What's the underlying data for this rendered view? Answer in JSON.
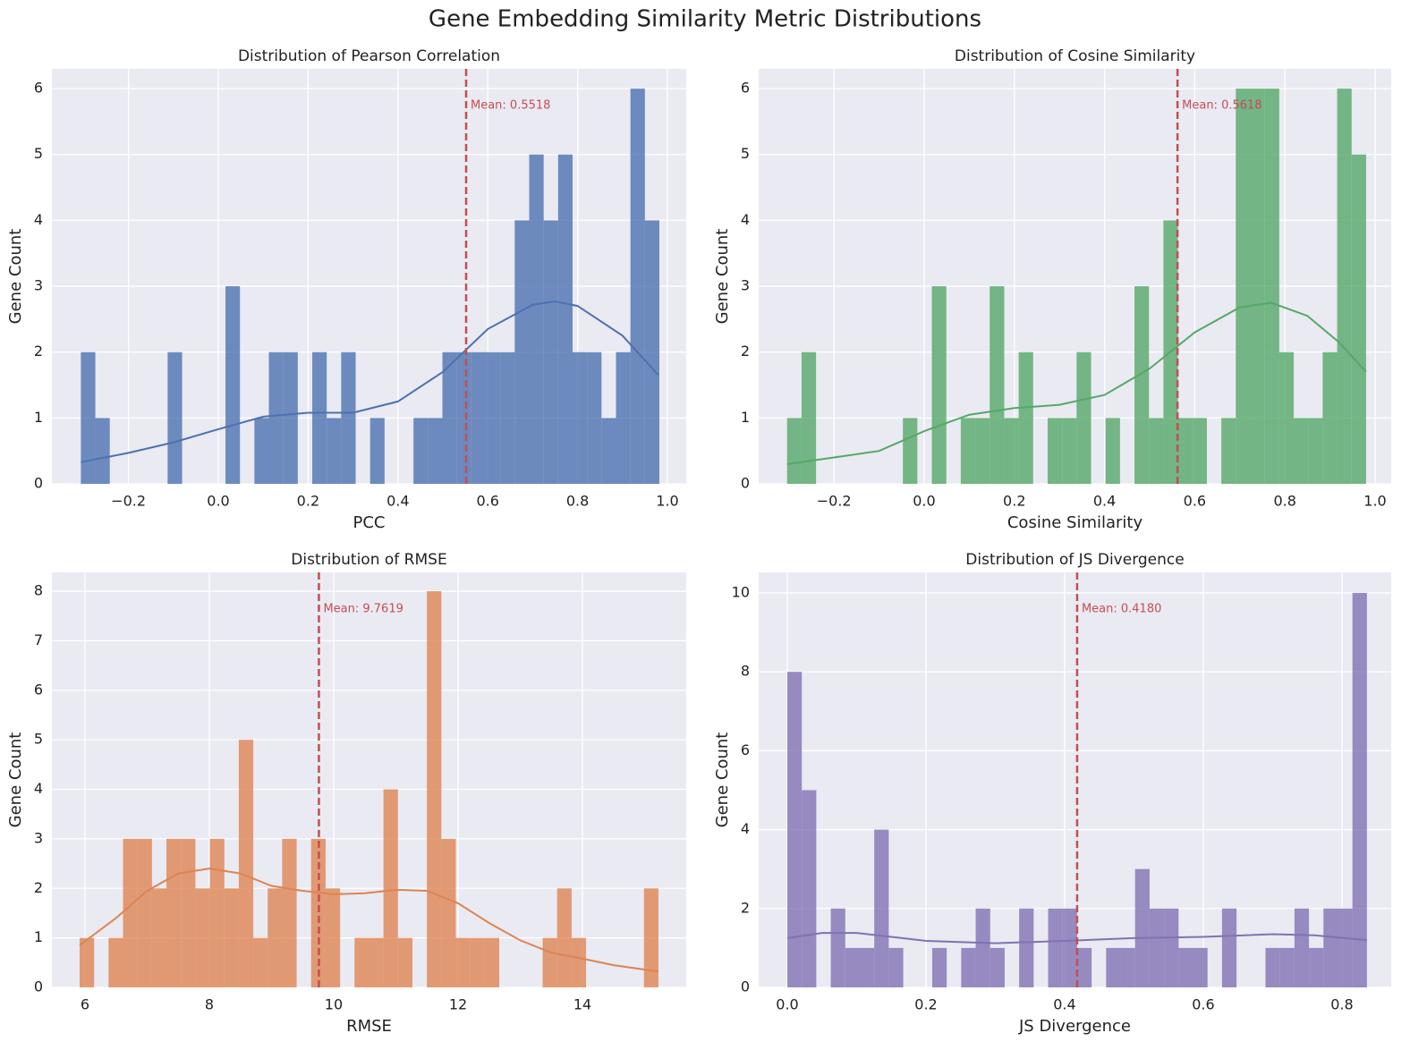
{
  "title": "Gene Embedding Similarity Metric Distributions",
  "chart_data": [
    {
      "type": "histogram",
      "title": "Distribution of Pearson Correlation",
      "xlabel": "PCC",
      "ylabel": "Gene Count",
      "color": "#4c72b0",
      "grid": true,
      "bins": [
        -0.306,
        -0.2738,
        -0.2416,
        -0.2094,
        -0.1772,
        -0.145,
        -0.1128,
        -0.0806,
        -0.0484,
        -0.0162,
        0.016,
        0.0482,
        0.0804,
        0.1126,
        0.1448,
        0.177,
        0.2092,
        0.2414,
        0.2736,
        0.3058,
        0.338,
        0.3702,
        0.4024,
        0.4346,
        0.4668,
        0.499,
        0.5312,
        0.5634,
        0.5956,
        0.6278,
        0.66,
        0.6922,
        0.7244,
        0.7566,
        0.7888,
        0.821,
        0.8532,
        0.8854,
        0.9176,
        0.9498,
        0.982
      ],
      "counts": [
        2,
        1,
        0,
        0,
        0,
        0,
        2,
        0,
        0,
        0,
        3,
        0,
        1,
        2,
        2,
        0,
        2,
        1,
        2,
        0,
        1,
        0,
        0,
        1,
        1,
        2,
        2,
        2,
        2,
        2,
        4,
        5,
        4,
        5,
        2,
        2,
        1,
        2,
        6,
        4
      ],
      "kde": {
        "x": [
          -0.306,
          -0.2,
          -0.1,
          0.0,
          0.1,
          0.2,
          0.3,
          0.4,
          0.5,
          0.6,
          0.7,
          0.75,
          0.8,
          0.9,
          0.98
        ],
        "y": [
          0.33,
          0.47,
          0.63,
          0.83,
          1.02,
          1.08,
          1.08,
          1.25,
          1.7,
          2.35,
          2.72,
          2.77,
          2.7,
          2.25,
          1.65
        ]
      },
      "mean": {
        "value": 0.5518,
        "label": "Mean: 0.5518",
        "color": "#c44e52"
      },
      "xlim": [
        -0.3705,
        1.0418
      ],
      "ylim": [
        0,
        6.3
      ],
      "xticks": [
        {
          "value": -0.2,
          "label": "−0.2"
        },
        {
          "value": 0,
          "label": "0.0"
        },
        0.2,
        0.4,
        0.6,
        0.8,
        {
          "value": 1,
          "label": "1.0"
        }
      ],
      "yticks": [
        0,
        1,
        2,
        3,
        4,
        5,
        6
      ]
    },
    {
      "type": "histogram",
      "title": "Distribution of Cosine Similarity",
      "xlabel": "Cosine Similarity",
      "ylabel": "Gene Count",
      "color": "#55a868",
      "grid": true,
      "bins": [
        -0.304,
        -0.2719,
        -0.2398,
        -0.2077,
        -0.1756,
        -0.1435,
        -0.1114,
        -0.0793,
        -0.0472,
        -0.0151,
        0.017,
        0.0491,
        0.0812,
        0.1133,
        0.1454,
        0.1775,
        0.2096,
        0.2417,
        0.2738,
        0.3059,
        0.338,
        0.3701,
        0.4022,
        0.4343,
        0.4664,
        0.4985,
        0.5306,
        0.5627,
        0.5948,
        0.6269,
        0.659,
        0.6911,
        0.7232,
        0.7553,
        0.7874,
        0.8195,
        0.8516,
        0.8837,
        0.9158,
        0.9479,
        0.98
      ],
      "counts": [
        1,
        2,
        0,
        0,
        0,
        0,
        0,
        0,
        1,
        0,
        3,
        0,
        1,
        1,
        3,
        1,
        2,
        0,
        1,
        1,
        2,
        0,
        1,
        0,
        3,
        1,
        4,
        1,
        1,
        0,
        1,
        6,
        6,
        6,
        2,
        1,
        1,
        2,
        6,
        5
      ],
      "kde": {
        "x": [
          -0.304,
          -0.2,
          -0.1,
          0.0,
          0.1,
          0.2,
          0.3,
          0.4,
          0.5,
          0.6,
          0.7,
          0.77,
          0.85,
          0.92,
          0.98
        ],
        "y": [
          0.3,
          0.4,
          0.5,
          0.8,
          1.05,
          1.15,
          1.2,
          1.35,
          1.75,
          2.3,
          2.68,
          2.75,
          2.55,
          2.15,
          1.7
        ]
      },
      "mean": {
        "value": 0.5618,
        "label": "Mean: 0.5618",
        "color": "#c44e52"
      },
      "xlim": [
        -0.367,
        1.0357
      ],
      "ylim": [
        0,
        6.3
      ],
      "xticks": [
        {
          "value": -0.2,
          "label": "−0.2"
        },
        {
          "value": 0,
          "label": "0.0"
        },
        0.2,
        0.4,
        0.6,
        0.8,
        {
          "value": 1,
          "label": "1.0"
        }
      ],
      "yticks": [
        0,
        1,
        2,
        3,
        4,
        5,
        6
      ]
    },
    {
      "type": "histogram",
      "title": "Distribution of RMSE",
      "xlabel": "RMSE",
      "ylabel": "Gene Count",
      "color": "#dd8452",
      "grid": true,
      "bins": [
        5.914,
        6.1467,
        6.3794,
        6.6121,
        6.8448,
        7.0775,
        7.3102,
        7.5429,
        7.7756,
        8.0083,
        8.241,
        8.4737,
        8.7064,
        8.9391,
        9.1718,
        9.4045,
        9.6372,
        9.8699,
        10.1026,
        10.3353,
        10.568,
        10.8007,
        11.0334,
        11.2661,
        11.4988,
        11.7315,
        11.9642,
        12.1969,
        12.4296,
        12.6623,
        12.895,
        13.1277,
        13.3604,
        13.5931,
        13.8258,
        14.0585,
        14.2912,
        14.5239,
        14.7566,
        14.9893,
        15.222
      ],
      "counts": [
        1,
        0,
        1,
        3,
        3,
        2,
        3,
        3,
        2,
        3,
        2,
        5,
        1,
        2,
        3,
        0,
        3,
        2,
        0,
        1,
        1,
        4,
        1,
        0,
        8,
        3,
        1,
        1,
        1,
        0,
        0,
        0,
        1,
        2,
        1,
        0,
        0,
        0,
        0,
        2
      ],
      "kde": {
        "x": [
          5.914,
          6.5,
          7,
          7.5,
          8,
          8.5,
          9,
          9.5,
          10,
          10.5,
          11,
          11.5,
          12,
          12.5,
          13,
          13.5,
          14,
          14.5,
          15.222
        ],
        "y": [
          0.85,
          1.4,
          1.95,
          2.3,
          2.4,
          2.3,
          2.05,
          1.95,
          1.88,
          1.9,
          1.97,
          1.95,
          1.7,
          1.3,
          0.95,
          0.7,
          0.58,
          0.45,
          0.32
        ]
      },
      "mean": {
        "value": 9.7619,
        "label": "Mean: 9.7619",
        "color": "#c44e52"
      },
      "xlim": [
        5.468,
        15.669
      ],
      "ylim": [
        0,
        8.38
      ],
      "xticks": [
        6,
        8,
        10,
        12,
        14
      ],
      "yticks": [
        0,
        1,
        2,
        3,
        4,
        5,
        6,
        7,
        8
      ]
    },
    {
      "type": "histogram",
      "title": "Distribution of JS Divergence",
      "xlabel": "JS Divergence",
      "ylabel": "Gene Count",
      "color": "#8172b3",
      "grid": true,
      "bins": [
        0,
        0.0209,
        0.0418,
        0.0627,
        0.0836,
        0.1045,
        0.1254,
        0.1463,
        0.1672,
        0.1881,
        0.209,
        0.2299,
        0.2508,
        0.2717,
        0.2926,
        0.3135,
        0.3344,
        0.3553,
        0.3762,
        0.3971,
        0.418,
        0.4389,
        0.4598,
        0.4807,
        0.5016,
        0.5225,
        0.5434,
        0.5643,
        0.5852,
        0.6061,
        0.627,
        0.6479,
        0.6688,
        0.6897,
        0.7106,
        0.7315,
        0.7524,
        0.7733,
        0.7942,
        0.8151,
        0.836
      ],
      "counts": [
        8,
        5,
        0,
        2,
        1,
        1,
        4,
        1,
        0,
        0,
        1,
        0,
        1,
        2,
        1,
        0,
        2,
        0,
        2,
        2,
        1,
        0,
        1,
        1,
        3,
        2,
        2,
        1,
        1,
        0,
        2,
        0,
        0,
        1,
        1,
        2,
        1,
        2,
        2,
        10
      ],
      "kde": {
        "x": [
          0,
          0.05,
          0.1,
          0.15,
          0.2,
          0.3,
          0.4,
          0.5,
          0.6,
          0.7,
          0.76,
          0.836
        ],
        "y": [
          1.25,
          1.38,
          1.38,
          1.28,
          1.18,
          1.12,
          1.18,
          1.25,
          1.28,
          1.35,
          1.32,
          1.2
        ]
      },
      "mean": {
        "value": 0.418,
        "label": "Mean: 0.4180",
        "color": "#c44e52"
      },
      "xlim": [
        -0.0413,
        0.871
      ],
      "ylim": [
        0,
        10.52
      ],
      "xticks": [
        {
          "value": 0,
          "label": "0.0"
        },
        0.2,
        0.4,
        0.6,
        0.8
      ],
      "yticks": [
        0,
        2,
        4,
        6,
        8,
        10
      ]
    }
  ]
}
